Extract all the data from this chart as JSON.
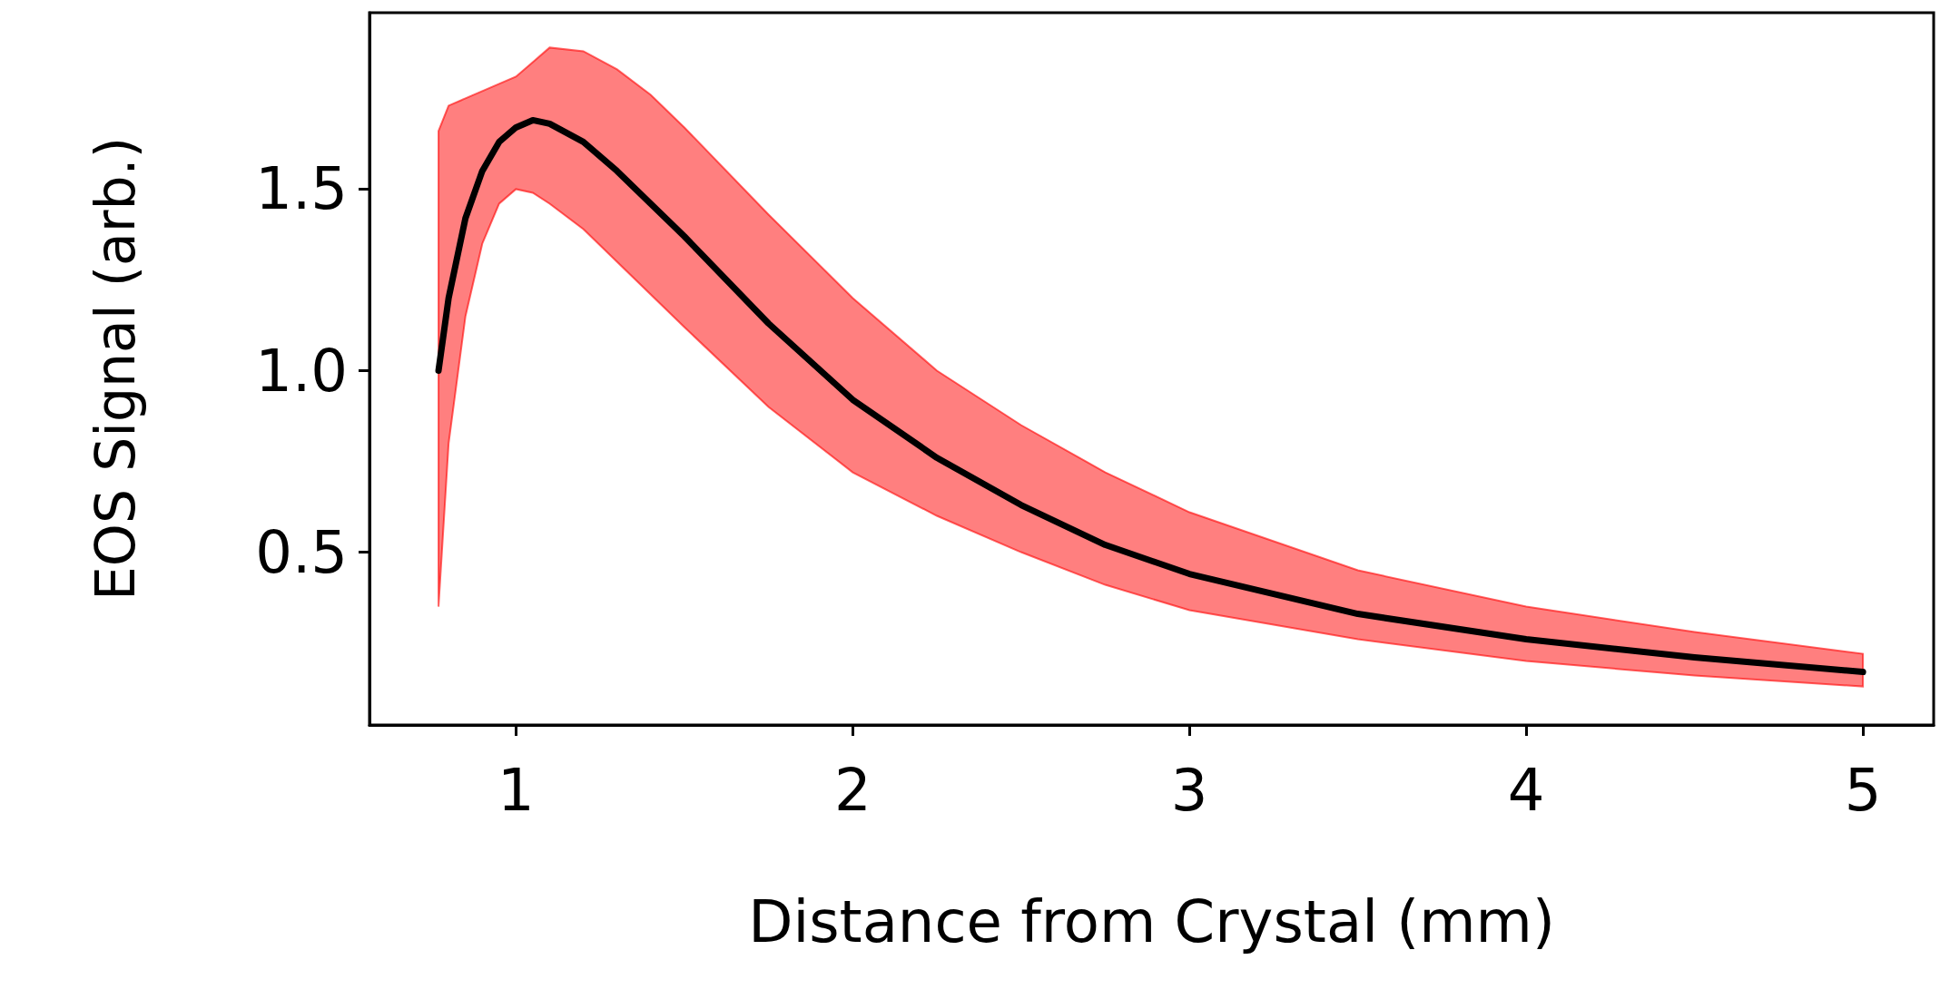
{
  "chart_data": {
    "type": "line",
    "xlabel": "Distance from Crystal (mm)",
    "ylabel": "EOS Signal (arb.)",
    "xlim": [
      0.565,
      5.21
    ],
    "xticks": [
      1,
      2,
      3,
      4,
      5
    ],
    "ylim": [
      0.024,
      1.986
    ],
    "yticks": [
      {
        "value": 0.5,
        "label": "0.5"
      },
      {
        "value": 1.0,
        "label": "1.0"
      },
      {
        "value": 1.5,
        "label": "1.5"
      }
    ],
    "grid": false,
    "marker": "none",
    "line_style": "solid",
    "series": [
      {
        "color": "#000000",
        "x": [
          0.77,
          0.8,
          0.85,
          0.9,
          0.95,
          1.0,
          1.05,
          1.1,
          1.2,
          1.3,
          1.4,
          1.5,
          1.75,
          2.0,
          2.25,
          2.5,
          2.75,
          3.0,
          3.5,
          4.0,
          4.5,
          5.0
        ],
        "values": [
          1.0,
          1.2,
          1.42,
          1.55,
          1.63,
          1.67,
          1.69,
          1.68,
          1.63,
          1.55,
          1.46,
          1.37,
          1.13,
          0.92,
          0.76,
          0.63,
          0.52,
          0.44,
          0.33,
          0.26,
          0.21,
          0.17
        ],
        "lower": [
          0.35,
          0.8,
          1.15,
          1.35,
          1.46,
          1.5,
          1.49,
          1.46,
          1.39,
          1.3,
          1.21,
          1.12,
          0.9,
          0.72,
          0.6,
          0.5,
          0.41,
          0.34,
          0.26,
          0.2,
          0.16,
          0.13
        ],
        "upper": [
          1.66,
          1.73,
          1.75,
          1.77,
          1.79,
          1.81,
          1.85,
          1.89,
          1.88,
          1.83,
          1.76,
          1.67,
          1.43,
          1.2,
          1.0,
          0.85,
          0.72,
          0.61,
          0.45,
          0.35,
          0.28,
          0.22
        ]
      }
    ]
  }
}
